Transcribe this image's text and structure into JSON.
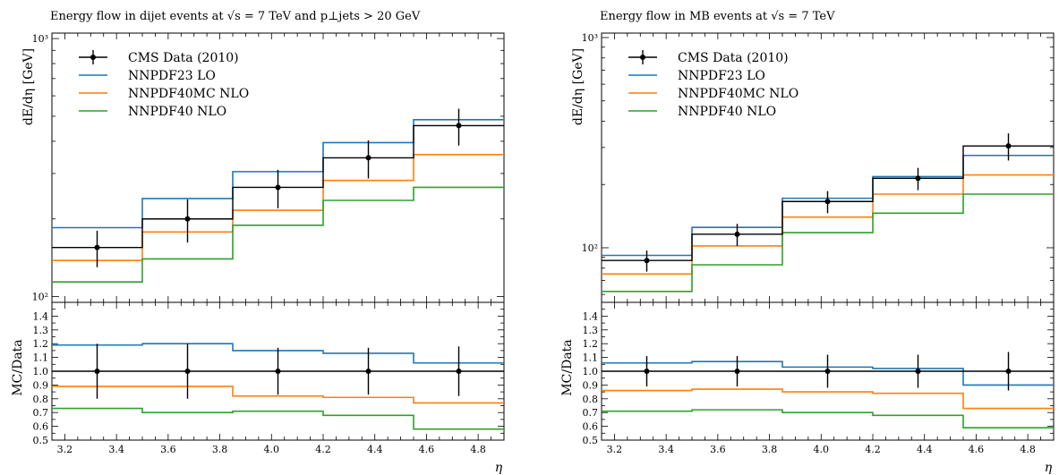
{
  "chart_data": [
    {
      "type": "line",
      "title": "Energy flow in dijet events at √s = 7 TeV and p⊥jets > 20 GeV",
      "xlabel": "η",
      "ylabel_main": "dE/dη [GeV]",
      "ylabel_ratio": "MC/Data",
      "ylog": true,
      "xlim": [
        3.15,
        4.9
      ],
      "ylim": [
        95,
        1050
      ],
      "ratio_ylim": [
        0.5,
        1.5
      ],
      "x_edges": [
        3.15,
        3.5,
        3.85,
        4.2,
        4.55,
        4.9
      ],
      "x_ticks": [
        "3.2",
        "3.4",
        "3.6",
        "3.8",
        "4.0",
        "4.2",
        "4.4",
        "4.6",
        "4.8"
      ],
      "y_ticks": [
        "10²",
        "10³"
      ],
      "ratio_ticks": [
        "0.5",
        "0.6",
        "0.7",
        "0.8",
        "0.9",
        "1.0",
        "1.1",
        "1.2",
        "1.3",
        "1.4"
      ],
      "legend_position": "top-left",
      "data": {
        "name": "CMS Data (2010)",
        "x": [
          3.325,
          3.675,
          4.025,
          4.375,
          4.725
        ],
        "y": [
          155,
          200,
          265,
          345,
          460
        ],
        "err": [
          25,
          38,
          45,
          58,
          75
        ],
        "ratio_err": [
          0.2,
          0.2,
          0.17,
          0.17,
          0.18
        ]
      },
      "series": [
        {
          "name": "NNPDF23 LO",
          "color": "#1f77b4",
          "values": [
            185,
            240,
            305,
            395,
            485
          ],
          "ratio": [
            1.19,
            1.2,
            1.15,
            1.13,
            1.06
          ]
        },
        {
          "name": "NNPDF40MC NLO",
          "color": "#ff7f0e",
          "values": [
            138,
            178,
            216,
            282,
            355
          ],
          "ratio": [
            0.89,
            0.89,
            0.82,
            0.81,
            0.77
          ]
        },
        {
          "name": "NNPDF40 NLO",
          "color": "#2ca02c",
          "values": [
            114,
            140,
            189,
            236,
            265
          ],
          "ratio": [
            0.73,
            0.7,
            0.71,
            0.68,
            0.58
          ]
        }
      ]
    },
    {
      "type": "line",
      "title": "Energy flow in MB events at √s = 7 TeV",
      "xlabel": "η",
      "ylabel_main": "dE/dη [GeV]",
      "ylabel_ratio": "MC/Data",
      "ylog": true,
      "xlim": [
        3.15,
        4.9
      ],
      "ylim": [
        55,
        1050
      ],
      "ratio_ylim": [
        0.5,
        1.5
      ],
      "x_edges": [
        3.15,
        3.5,
        3.85,
        4.2,
        4.55,
        4.9
      ],
      "x_ticks": [
        "3.2",
        "3.4",
        "3.6",
        "3.8",
        "4.0",
        "4.2",
        "4.4",
        "4.6",
        "4.8"
      ],
      "y_ticks": [
        "10²",
        "10³"
      ],
      "ratio_ticks": [
        "0.5",
        "0.6",
        "0.7",
        "0.8",
        "0.9",
        "1.0",
        "1.1",
        "1.2",
        "1.3",
        "1.4"
      ],
      "legend_position": "top-left",
      "data": {
        "name": "CMS Data (2010)",
        "x": [
          3.325,
          3.675,
          4.025,
          4.375,
          4.725
        ],
        "y": [
          87,
          116,
          166,
          214,
          305
        ],
        "err": [
          10,
          14,
          20,
          26,
          45
        ],
        "ratio_err": [
          0.11,
          0.11,
          0.12,
          0.12,
          0.14
        ]
      },
      "series": [
        {
          "name": "NNPDF23 LO",
          "color": "#1f77b4",
          "values": [
            92,
            125,
            172,
            218,
            275
          ],
          "ratio": [
            1.06,
            1.07,
            1.03,
            1.02,
            0.9
          ]
        },
        {
          "name": "NNPDF40MC NLO",
          "color": "#ff7f0e",
          "values": [
            75,
            102,
            140,
            180,
            222
          ],
          "ratio": [
            0.86,
            0.87,
            0.85,
            0.84,
            0.73
          ]
        },
        {
          "name": "NNPDF40 NLO",
          "color": "#2ca02c",
          "values": [
            62,
            83,
            118,
            146,
            180
          ],
          "ratio": [
            0.71,
            0.72,
            0.7,
            0.68,
            0.59
          ]
        }
      ]
    }
  ]
}
